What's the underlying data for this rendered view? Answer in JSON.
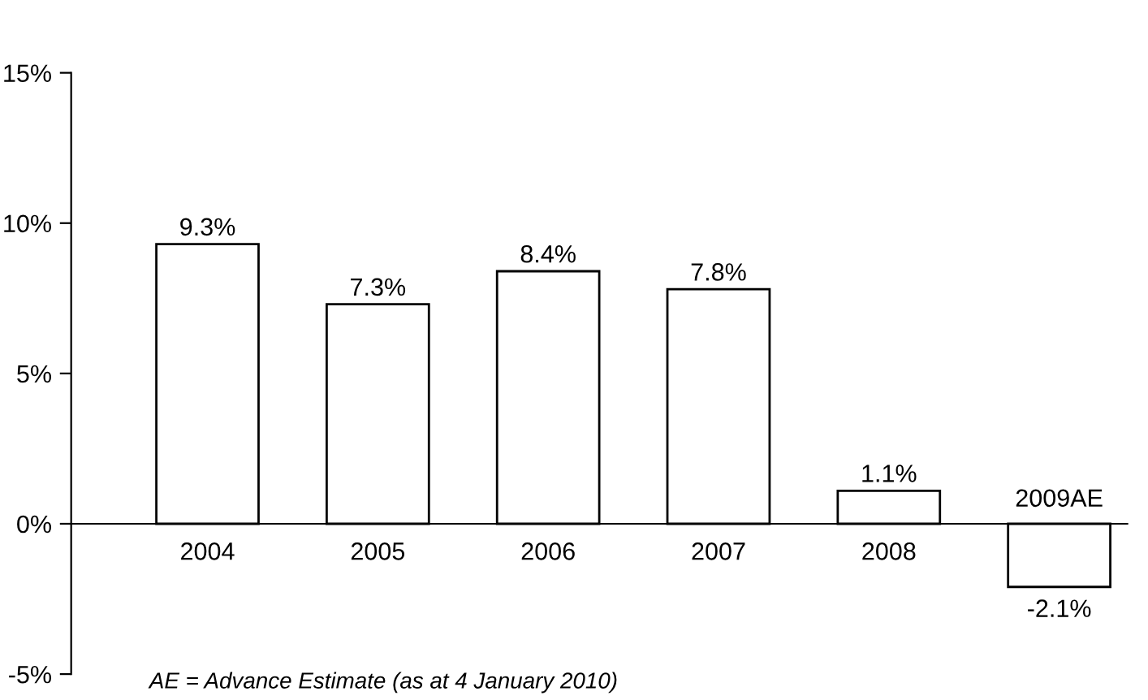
{
  "chart_data": {
    "type": "bar",
    "categories": [
      "2004",
      "2005",
      "2006",
      "2007",
      "2008",
      "2009AE"
    ],
    "values": [
      9.3,
      7.3,
      8.4,
      7.8,
      1.1,
      -2.1
    ],
    "value_labels": [
      "9.3%",
      "7.3%",
      "8.4%",
      "7.8%",
      "1.1%",
      "-2.1%"
    ],
    "color": "#ffffff",
    "ylim": [
      -5,
      15
    ],
    "yticks": [
      {
        "value": -5,
        "label": "-5%"
      },
      {
        "value": 0,
        "label": "0%"
      },
      {
        "value": 5,
        "label": "5%"
      },
      {
        "value": 10,
        "label": "10%"
      },
      {
        "value": 15,
        "label": "15%"
      }
    ],
    "grid": false,
    "legend": false,
    "annotations": [
      "AE = Advance Estimate (as at 4 January 2010)"
    ]
  }
}
